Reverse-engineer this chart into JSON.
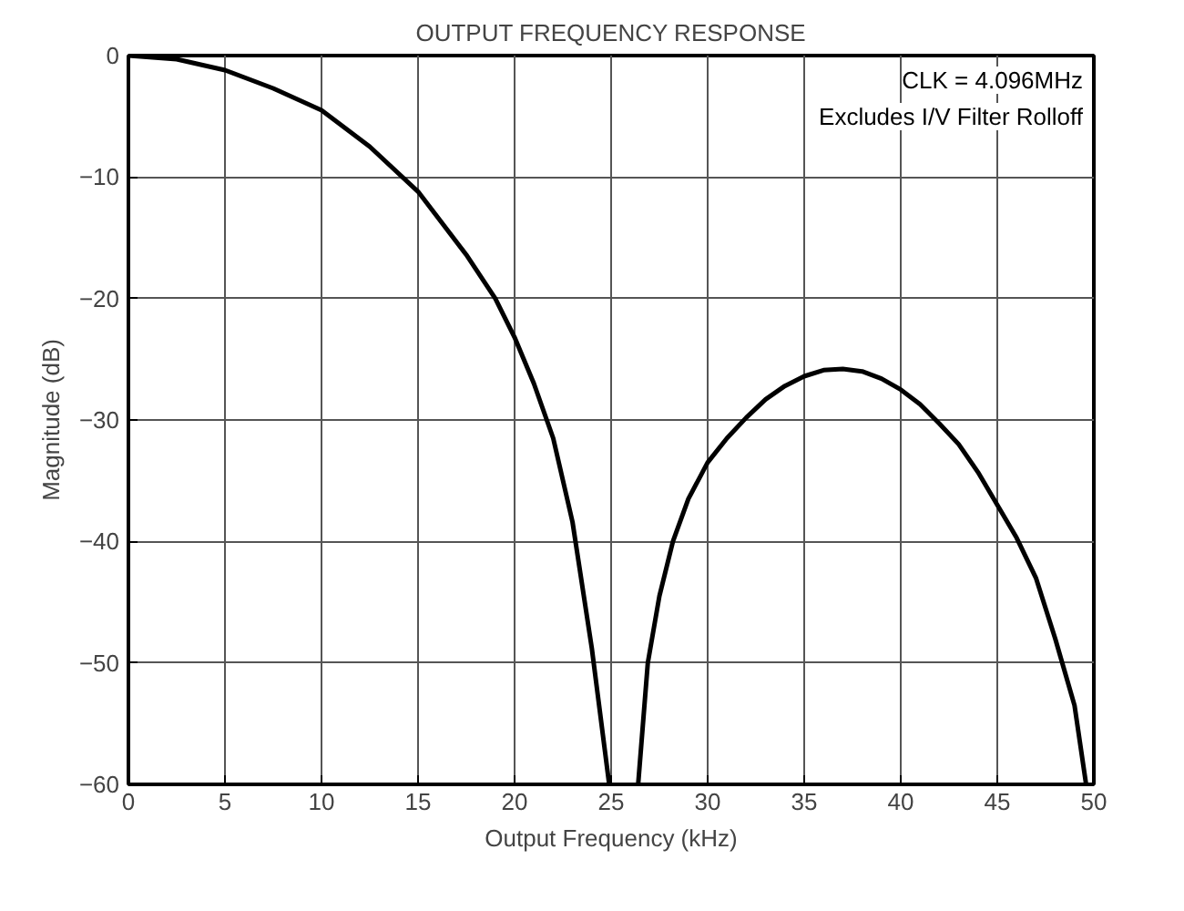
{
  "chart_data": {
    "type": "line",
    "title": "OUTPUT FREQUENCY RESPONSE",
    "xlabel": "Output Frequency (kHz)",
    "ylabel": "Magnitude (dB)",
    "annotations": [
      "CLK = 4.096MHz",
      "Excludes I/V Filter Rolloff"
    ],
    "xlim": [
      0,
      50
    ],
    "ylim": [
      -60,
      0
    ],
    "xticks": [
      0,
      5,
      10,
      15,
      20,
      25,
      30,
      35,
      40,
      45,
      50
    ],
    "yticks": [
      -60,
      -50,
      -40,
      -30,
      -20,
      -10,
      0
    ],
    "grid": true,
    "marker": "none",
    "line_style": "solid",
    "series": [
      {
        "color": "#000000",
        "x": [
          0,
          2.5,
          5,
          7.5,
          10,
          12.5,
          15,
          17.5,
          19,
          20,
          21,
          22,
          23,
          24,
          24.9,
          25.6,
          26.4,
          26.9,
          27.5,
          28.2,
          29,
          30,
          31,
          32,
          33,
          34,
          35,
          36,
          37,
          38,
          39,
          40,
          41,
          42,
          43,
          44,
          45,
          46,
          47,
          48,
          49,
          49.6
        ],
        "values": [
          0,
          -0.3,
          -1.2,
          -2.7,
          -4.5,
          -7.5,
          -11.2,
          -16.4,
          -20,
          -23.2,
          -27,
          -31.5,
          -38.4,
          -48.8,
          -60,
          null,
          -60,
          -50,
          -44.5,
          -40,
          -36.5,
          -33.5,
          -31.5,
          -29.8,
          -28.3,
          -27.2,
          -26.4,
          -25.9,
          -25.8,
          -26,
          -26.6,
          -27.5,
          -28.7,
          -30.3,
          -32,
          -34.3,
          -37,
          -39.7,
          -43,
          -48,
          -53.5,
          -60
        ]
      }
    ]
  }
}
